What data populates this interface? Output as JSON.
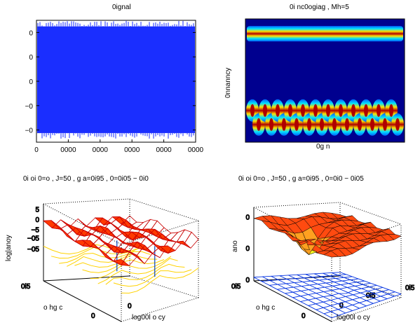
{
  "chart_data": [
    {
      "type": "line",
      "title": "0ignal",
      "yticks": [
        "0",
        "0",
        "0",
        "−0",
        "−0"
      ],
      "xticks": [
        "0",
        "0000",
        "0000",
        "0000",
        "0000",
        "0000"
      ],
      "signal_color": "#1a2eff",
      "series": [
        {
          "envelope_upper": 0.9,
          "envelope_lower": -0.85
        }
      ]
    },
    {
      "type": "heatmap",
      "title": "0i nc0ogiag , Mh=5",
      "xlabel": "0g n",
      "ylabel": "0nnanncy",
      "colormap": [
        "#00008f",
        "#0060ff",
        "#00e0ff",
        "#ffe000",
        "#ff6000",
        "#b00000"
      ],
      "rows": [
        {
          "label": "constant band",
          "frequency_position": 0.12,
          "intensity": 1.0
        },
        {
          "label": "oscillating band",
          "frequency_position": 0.8,
          "intensity": 1.0,
          "cycles": 12
        }
      ]
    },
    {
      "type": "surface",
      "title": "0i oi 0=o , J=50 , g a=0i95 , 0=0i05 − 0i0",
      "xlabel": "o hg c",
      "ylabel": "log00l o cy",
      "zlabel": "log|anoy",
      "zticks": [
        "5",
        "0",
        "−5",
        "−05",
        "−05"
      ],
      "xticks": [
        "0i5",
        "0"
      ],
      "yticks": [
        "0"
      ],
      "colors": {
        "surface": "#ff3a00",
        "edges": "#c80000",
        "lower": "#ffd200",
        "blue": "#0040c0"
      }
    },
    {
      "type": "surface",
      "title": "0i oi 0=o , J=50 , g a=0i95 , 0=0i0 − 0i05",
      "xlabel": "o hg c",
      "ylabel": "log00l o cy",
      "zlabel": "ano",
      "zticks": [
        "0",
        "0",
        "0"
      ],
      "xticks": [
        "0i5",
        "0"
      ],
      "yticks": [
        "0",
        "0i5",
        "0i5"
      ],
      "colors": {
        "surface": "#ff4a10",
        "peak": "#ffff20",
        "mesh": "#0030e0"
      }
    }
  ]
}
